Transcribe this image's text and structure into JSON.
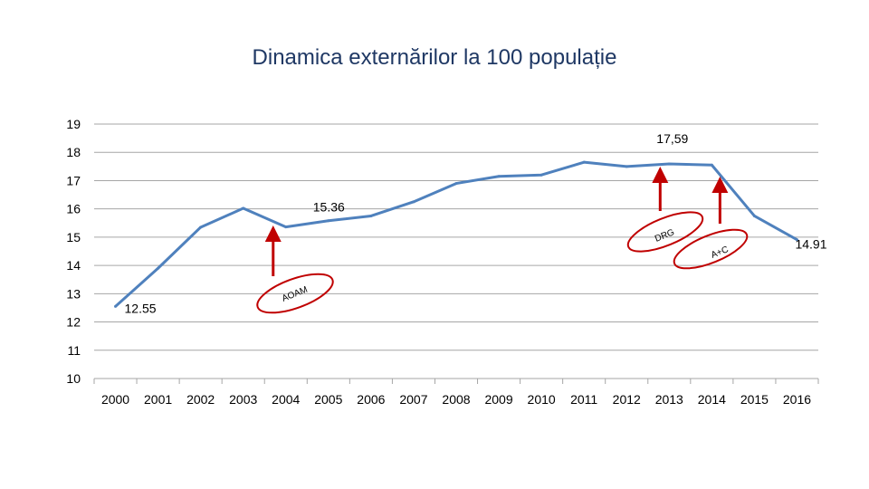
{
  "chart_data": {
    "type": "line",
    "title": "Dinamica externărilor la 100 populație",
    "xlabel": "",
    "ylabel": "",
    "x": [
      "2000",
      "2001",
      "2002",
      "2003",
      "2004",
      "2005",
      "2006",
      "2007",
      "2008",
      "2009",
      "2010",
      "2011",
      "2012",
      "2013",
      "2014",
      "2015",
      "2016"
    ],
    "series": [
      {
        "values": [
          12.55,
          13.9,
          15.35,
          16.02,
          15.36,
          15.58,
          15.75,
          16.25,
          16.9,
          17.15,
          17.2,
          17.65,
          17.5,
          17.59,
          17.55,
          15.75,
          14.91
        ],
        "color": "#4f81bd"
      }
    ],
    "ylim": [
      10,
      19
    ],
    "yticks": [
      "10",
      "11",
      "12",
      "13",
      "14",
      "15",
      "16",
      "17",
      "18",
      "19"
    ],
    "grid": true,
    "legend": "none",
    "data_labels": [
      {
        "index": 0,
        "text": "12.55"
      },
      {
        "index": 4,
        "text": "15.36"
      },
      {
        "index": 13,
        "text": "17,59"
      },
      {
        "index": 16,
        "text": "14.91"
      }
    ],
    "annotations": {
      "arrow_color": "#c00000",
      "ellipse_color": "#c00000",
      "items": [
        {
          "label": "AOAM",
          "arrow_at_index": 4
        },
        {
          "label": "DRG",
          "arrow_at_index": 13
        },
        {
          "label": "A+C",
          "arrow_at_index": 14
        }
      ]
    }
  }
}
